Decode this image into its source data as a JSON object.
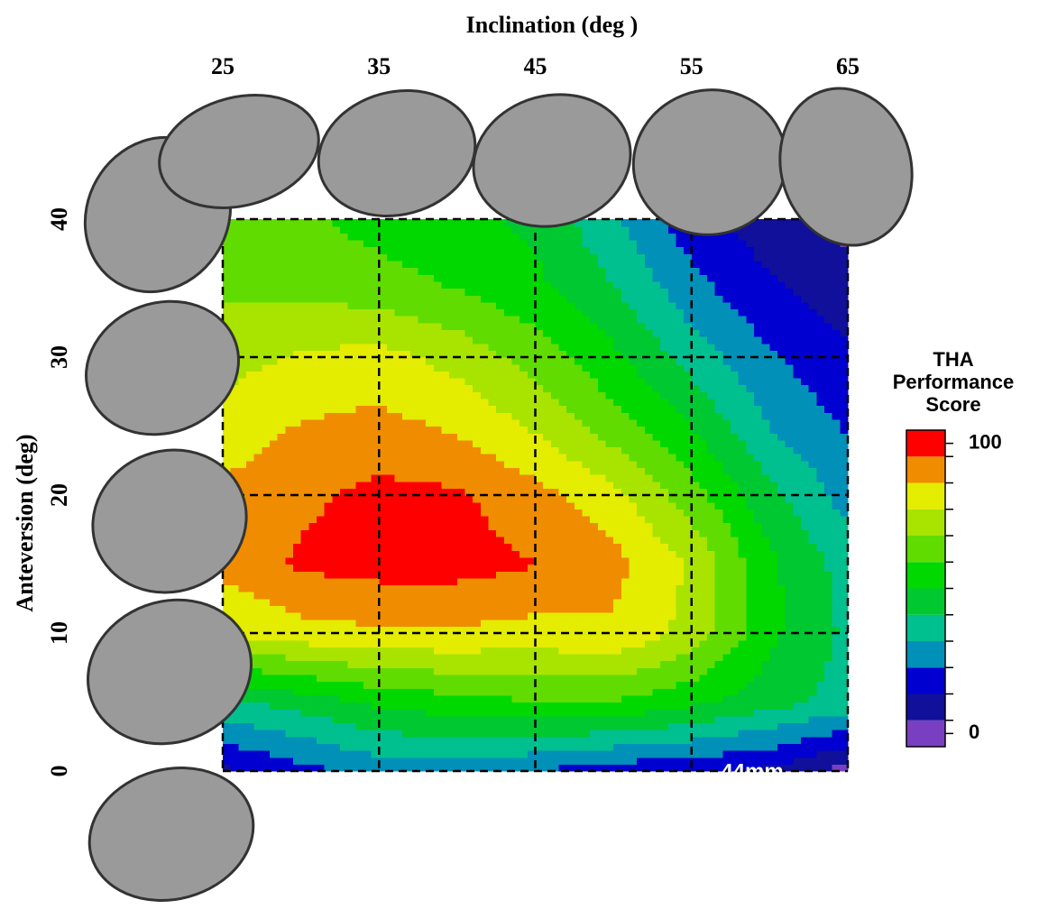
{
  "chart_data": {
    "type": "contour",
    "title": "Inclination (deg )",
    "y_label": "Anteversion (deg)",
    "x": [
      25,
      30,
      35,
      40,
      45,
      50,
      55,
      60,
      65
    ],
    "y": [
      0,
      5,
      10,
      15,
      20,
      25,
      30,
      35,
      40
    ],
    "z": [
      [
        15,
        22,
        28,
        28,
        25,
        20,
        18,
        15,
        5
      ],
      [
        40,
        45,
        52,
        55,
        58,
        58,
        52,
        45,
        38
      ],
      [
        75,
        80,
        82,
        82,
        80,
        82,
        72,
        52,
        40
      ],
      [
        86,
        93,
        95,
        95,
        92,
        86,
        74,
        52,
        38
      ],
      [
        85,
        90,
        94,
        93,
        86,
        78,
        62,
        44,
        30
      ],
      [
        78,
        84,
        86,
        82,
        74,
        62,
        50,
        33,
        24
      ],
      [
        72,
        76,
        78,
        72,
        63,
        52,
        38,
        26,
        18
      ],
      [
        65,
        65,
        62,
        58,
        52,
        42,
        28,
        18,
        12
      ],
      [
        62,
        60,
        55,
        52,
        48,
        35,
        20,
        12,
        5
      ]
    ],
    "xlim": [
      25,
      65
    ],
    "ylim": [
      0,
      40
    ],
    "xticks": [
      25,
      35,
      45,
      55,
      65
    ],
    "yticks": [
      0,
      10,
      20,
      30,
      40
    ],
    "grid": true,
    "colors": [
      "#7a3fc0",
      "#10109a",
      "#0000d0",
      "#0090b8",
      "#00c090",
      "#00c830",
      "#00d800",
      "#60dc00",
      "#a8e400",
      "#e4ec00",
      "#f08c00",
      "#ff0000"
    ],
    "colorbar_title": [
      "THA",
      "Performance",
      "Score"
    ],
    "zlim": [
      0,
      100
    ],
    "zticks": [
      0,
      100
    ],
    "annotation": "44mm"
  }
}
